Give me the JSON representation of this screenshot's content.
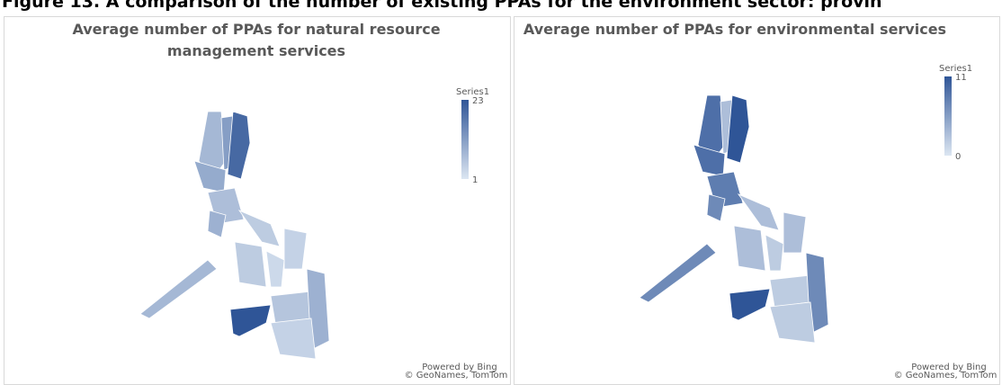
{
  "caption": "Figure 13. A comparison of the number of existing PPAs for the environment sector: provin",
  "chart_data": [
    {
      "type": "choropleth",
      "title": "Average number of PPAs for natural resource management services",
      "legend_title": "Series1",
      "vlim": [
        1,
        23
      ],
      "color_low": "#dce6f2",
      "color_high": "#2f5597",
      "values": [
        8,
        12,
        20,
        10,
        7,
        5,
        9,
        8,
        5,
        4,
        3,
        23,
        6,
        9,
        4
      ],
      "credit": [
        "Powered by Bing",
        "© GeoNames, TomTom"
      ]
    },
    {
      "type": "choropleth",
      "title": "Average number of PPAs for environmental services",
      "legend_title": "Series1",
      "vlim": [
        0,
        11
      ],
      "color_low": "#dce6f2",
      "color_high": "#2f5597",
      "values": [
        9,
        3,
        11,
        9,
        8,
        3,
        7,
        7,
        3,
        3,
        2,
        11,
        2,
        7,
        2
      ],
      "credit": [
        "Powered by Bing",
        "© GeoNames, TomTom"
      ]
    }
  ]
}
